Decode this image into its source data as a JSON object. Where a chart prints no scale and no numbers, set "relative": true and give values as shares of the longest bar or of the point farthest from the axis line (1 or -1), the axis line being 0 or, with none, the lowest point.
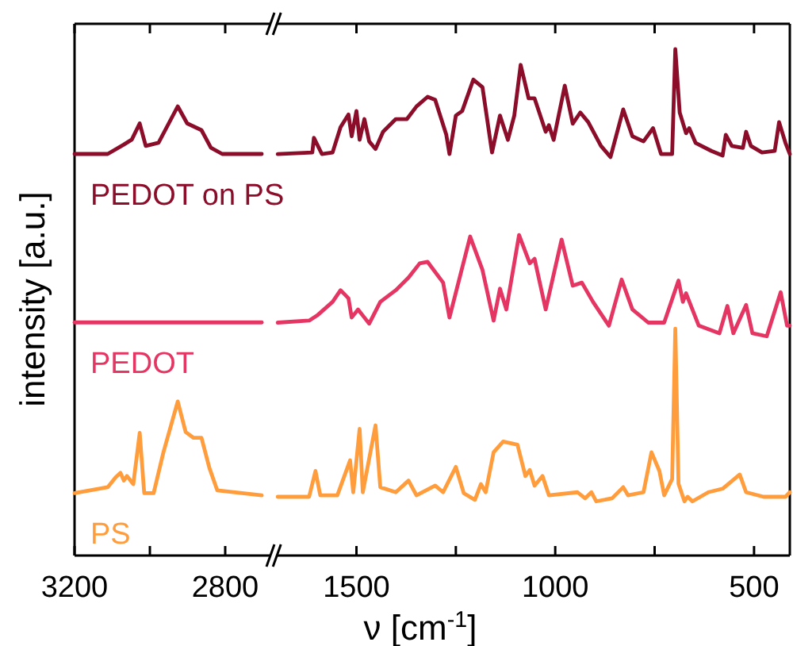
{
  "chart_data": [
    {
      "type": "line",
      "ylabel": "intensity [a.u.]",
      "relative": true,
      "xlim": [
        3200,
        2680
      ],
      "xticks": [
        3200,
        {
          "value": 3000,
          "label": null
        },
        2800
      ],
      "series": [
        {
          "name": "PEDOT on PS",
          "color": "#8c0d2a",
          "x": [
            3200,
            3112,
            3069,
            3048,
            3027,
            3011,
            2977,
            2926,
            2901,
            2863,
            2838,
            2808,
            2703
          ],
          "values": [
            0.894,
            0.894,
            0.915,
            0.926,
            0.962,
            0.912,
            0.919,
            1.0,
            0.962,
            0.947,
            0.908,
            0.894,
            0.894
          ]
        },
        {
          "name": "PEDOT",
          "color": "#e53563",
          "x": [
            3200,
            2703
          ],
          "values": [
            0.519,
            0.519
          ]
        },
        {
          "name": "PS",
          "color": "#ff9d3d",
          "x": [
            3200,
            3112,
            3091,
            3078,
            3069,
            3061,
            3044,
            3027,
            3015,
            2990,
            2964,
            2926,
            2905,
            2884,
            2863,
            2842,
            2821,
            2703
          ],
          "values": [
            0.139,
            0.152,
            0.174,
            0.184,
            0.167,
            0.177,
            0.159,
            0.273,
            0.139,
            0.139,
            0.23,
            0.343,
            0.275,
            0.262,
            0.262,
            0.195,
            0.145,
            0.134
          ]
        }
      ]
    },
    {
      "type": "line",
      "xlabel": "ν [cm$^{-1}$]",
      "relative": true,
      "xlim": [
        1700,
        410
      ],
      "xticks": [
        1500,
        {
          "value": 1250,
          "label": null
        },
        1000,
        {
          "value": 750,
          "label": null
        },
        500
      ],
      "series": [
        {
          "color": "#8c0d2a",
          "x": [
            1698,
            1611,
            1607,
            1587,
            1560,
            1540,
            1520,
            1512,
            1500,
            1492,
            1480,
            1468,
            1452,
            1433,
            1401,
            1373,
            1349,
            1321,
            1302,
            1274,
            1266,
            1250,
            1234,
            1206,
            1183,
            1159,
            1139,
            1119,
            1103,
            1087,
            1067,
            1052,
            1024,
            1016,
            1004,
            976,
            956,
            937,
            917,
            885,
            861,
            829,
            806,
            778,
            754,
            734,
            706,
            698,
            687,
            671,
            663,
            647,
            607,
            579,
            571,
            556,
            528,
            520,
            508,
            480,
            448,
            437,
            421,
            410
          ],
          "values": [
            0.793,
            0.796,
            0.825,
            0.793,
            0.796,
            0.846,
            0.871,
            0.828,
            0.878,
            0.821,
            0.862,
            0.818,
            0.803,
            0.837,
            0.862,
            0.862,
            0.887,
            0.906,
            0.9,
            0.831,
            0.793,
            0.869,
            0.878,
            0.94,
            0.925,
            0.796,
            0.869,
            0.821,
            0.869,
            0.969,
            0.903,
            0.903,
            0.837,
            0.85,
            0.821,
            0.928,
            0.853,
            0.875,
            0.856,
            0.809,
            0.787,
            0.881,
            0.828,
            0.818,
            0.844,
            0.793,
            0.793,
            1.0,
            0.875,
            0.834,
            0.844,
            0.815,
            0.799,
            0.79,
            0.831,
            0.809,
            0.805,
            0.837,
            0.809,
            0.796,
            0.799,
            0.856,
            0.815,
            0.793
          ]
        },
        {
          "color": "#e53563",
          "x": [
            1698,
            1619,
            1599,
            1560,
            1540,
            1520,
            1512,
            1496,
            1480,
            1468,
            1440,
            1401,
            1369,
            1341,
            1321,
            1282,
            1266,
            1214,
            1183,
            1155,
            1139,
            1123,
            1091,
            1064,
            1052,
            1024,
            984,
            956,
            933,
            905,
            865,
            833,
            806,
            766,
            726,
            690,
            679,
            671,
            639,
            587,
            567,
            552,
            520,
            504,
            468,
            433,
            417,
            410
          ],
          "values": [
            0.46,
            0.464,
            0.474,
            0.501,
            0.524,
            0.508,
            0.47,
            0.486,
            0.47,
            0.458,
            0.501,
            0.524,
            0.549,
            0.577,
            0.58,
            0.539,
            0.47,
            0.63,
            0.564,
            0.464,
            0.527,
            0.486,
            0.633,
            0.577,
            0.586,
            0.486,
            0.624,
            0.533,
            0.539,
            0.501,
            0.454,
            0.545,
            0.486,
            0.46,
            0.46,
            0.543,
            0.501,
            0.518,
            0.454,
            0.439,
            0.493,
            0.439,
            0.495,
            0.439,
            0.433,
            0.52,
            0.454,
            0.454
          ]
        },
        {
          "color": "#ff9d3d",
          "x": [
            1698,
            1619,
            1603,
            1591,
            1548,
            1516,
            1508,
            1492,
            1484,
            1452,
            1440,
            1401,
            1369,
            1349,
            1302,
            1282,
            1250,
            1230,
            1202,
            1187,
            1175,
            1155,
            1131,
            1095,
            1075,
            1064,
            1052,
            1032,
            1016,
            944,
            925,
            909,
            897,
            857,
            829,
            817,
            778,
            758,
            738,
            726,
            706,
            698,
            690,
            675,
            667,
            655,
            615,
            579,
            536,
            520,
            476,
            421,
            410
          ],
          "values": [
            0.116,
            0.116,
            0.167,
            0.119,
            0.119,
            0.188,
            0.125,
            0.25,
            0.125,
            0.257,
            0.135,
            0.125,
            0.148,
            0.119,
            0.138,
            0.125,
            0.175,
            0.123,
            0.11,
            0.141,
            0.125,
            0.204,
            0.225,
            0.219,
            0.157,
            0.169,
            0.138,
            0.157,
            0.119,
            0.125,
            0.113,
            0.125,
            0.107,
            0.113,
            0.135,
            0.119,
            0.125,
            0.204,
            0.167,
            0.119,
            0.151,
            0.448,
            0.142,
            0.107,
            0.116,
            0.107,
            0.125,
            0.132,
            0.16,
            0.125,
            0.116,
            0.116,
            0.125
          ]
        }
      ]
    }
  ]
}
